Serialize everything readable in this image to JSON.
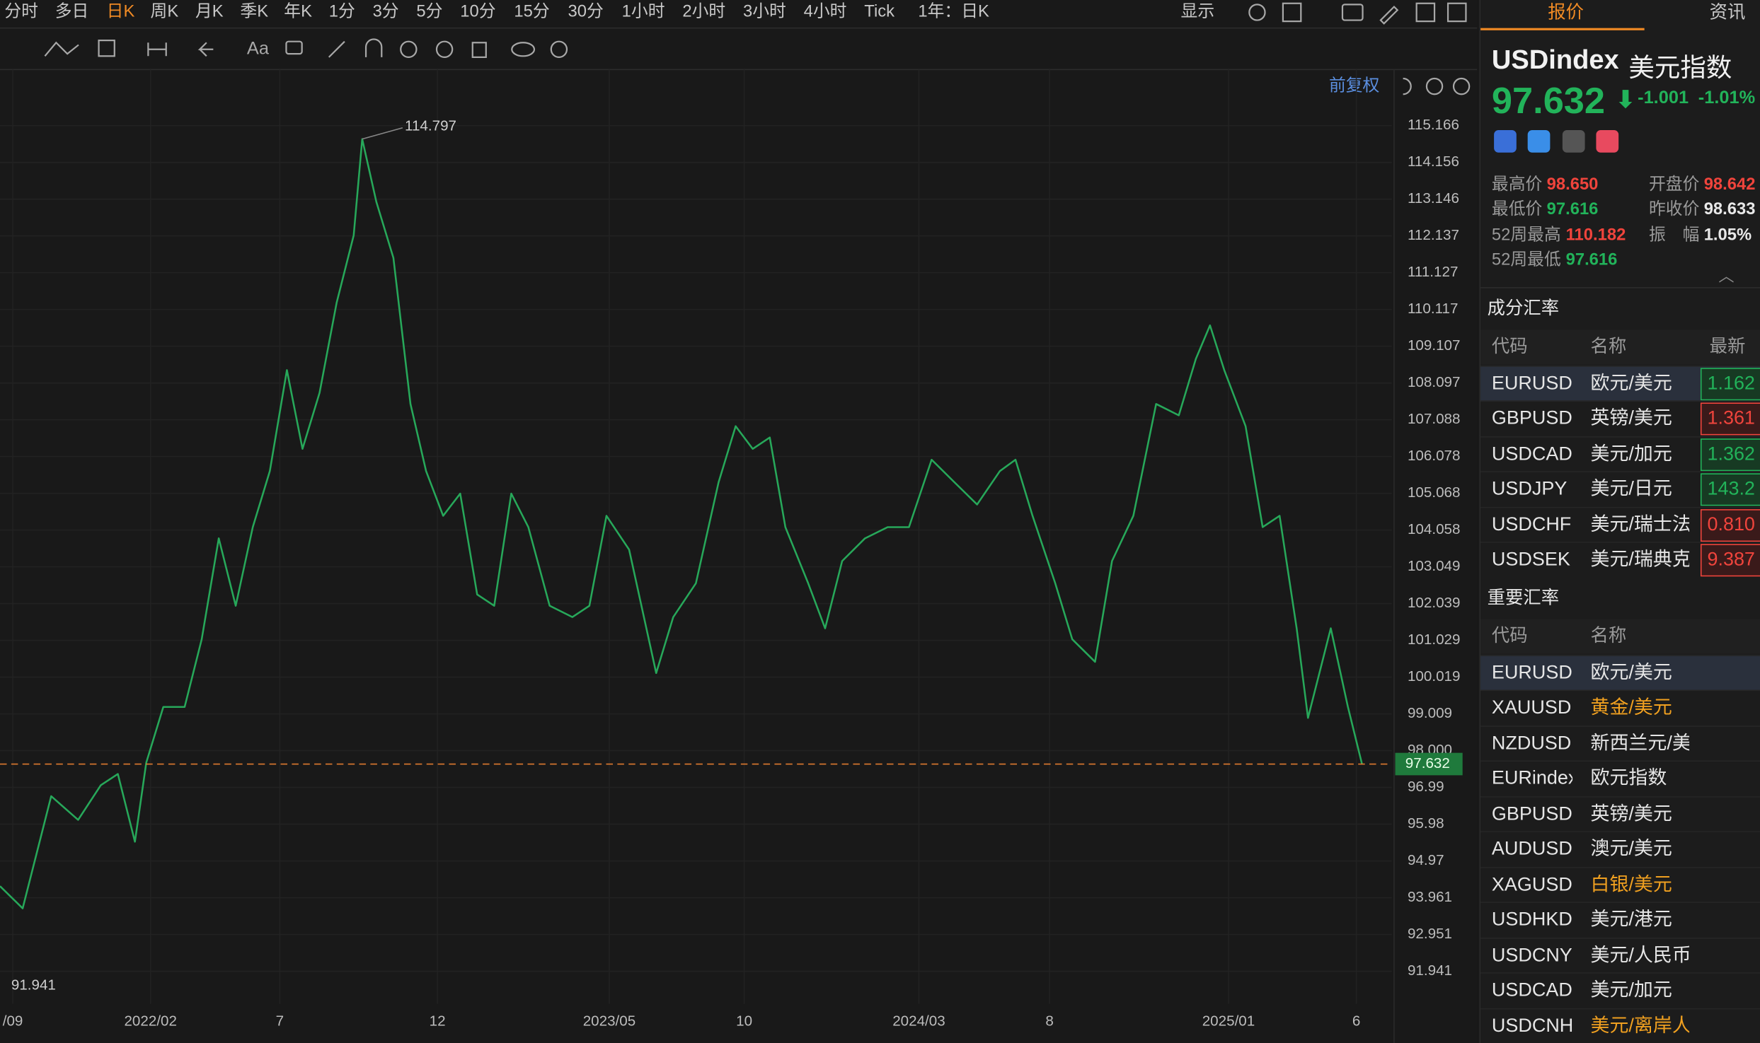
{
  "toolbar": {
    "periods": [
      "分时",
      "多日",
      "日K",
      "周K",
      "月K",
      "季K",
      "年K",
      "1分",
      "3分",
      "5分",
      "10分",
      "15分",
      "30分",
      "1小时",
      "2小时",
      "3小时",
      "4小时",
      "Tick"
    ],
    "active_index": 2,
    "range": "1年：日K",
    "display": "显示",
    "font_tool": "Aa"
  },
  "chart_data": {
    "type": "line",
    "x": [
      0,
      16,
      36,
      55,
      71,
      83,
      95,
      103,
      115,
      130,
      142,
      154,
      166,
      178,
      190,
      202,
      213,
      225,
      237,
      249,
      255,
      265,
      277,
      289,
      300,
      312,
      324,
      336,
      348,
      360,
      372,
      387,
      403,
      415,
      427,
      443,
      462,
      474,
      490,
      506,
      518,
      530,
      542,
      553,
      569,
      581,
      593,
      609,
      625,
      640,
      656,
      672,
      688,
      704,
      715,
      727,
      743,
      755,
      771,
      783,
      798,
      814,
      830,
      842,
      852,
      862,
      877,
      889,
      901,
      913,
      921,
      937,
      949,
      959
    ],
    "values": [
      94.28,
      93.67,
      96.75,
      96.1,
      97.05,
      97.36,
      95.5,
      97.67,
      99.2,
      99.2,
      101.06,
      103.83,
      101.98,
      104.14,
      105.68,
      108.45,
      106.29,
      107.83,
      110.3,
      112.15,
      114.797,
      113.07,
      111.53,
      107.52,
      105.68,
      104.45,
      105.06,
      102.29,
      101.98,
      105.06,
      104.14,
      101.98,
      101.67,
      101.98,
      104.45,
      103.52,
      100.13,
      101.67,
      102.6,
      105.37,
      106.91,
      106.29,
      106.6,
      104.14,
      102.6,
      101.36,
      103.21,
      103.83,
      104.14,
      104.14,
      105.99,
      105.37,
      104.76,
      105.68,
      105.99,
      104.45,
      102.6,
      101.06,
      100.44,
      103.21,
      104.45,
      107.52,
      107.21,
      108.76,
      109.68,
      108.45,
      106.91,
      104.14,
      104.45,
      101.36,
      98.9,
      101.36,
      99.21,
      97.632
    ],
    "color": "#27a85a",
    "xlim": [
      0,
      980
    ],
    "ylim": [
      91.048,
      116.706
    ],
    "yticks": [
      115.166,
      114.156,
      113.146,
      112.137,
      111.127,
      110.117,
      109.107,
      108.097,
      107.088,
      106.078,
      105.068,
      104.058,
      103.049,
      102.039,
      101.029,
      100.019,
      99.009,
      {
        "value": 98,
        "label": "98.000"
      },
      96.99,
      95.98,
      94.97,
      93.961,
      92.951,
      91.941
    ],
    "xticks": [
      {
        "value": 9,
        "label": "/09"
      },
      {
        "value": 106,
        "label": "2022/02"
      },
      {
        "value": 197,
        "label": "7"
      },
      {
        "value": 308,
        "label": "12"
      },
      {
        "value": 429,
        "label": "2023/05"
      },
      {
        "value": 524,
        "label": "10"
      },
      {
        "value": 647,
        "label": "2024/03"
      },
      {
        "value": 739,
        "label": "8"
      },
      {
        "value": 865,
        "label": "2025/01"
      },
      {
        "value": 955,
        "label": "6"
      }
    ],
    "grid": true,
    "adjust": "前复权",
    "last_price": 97.632,
    "last_price_color": "#e07a2f",
    "high_label": 114.797,
    "low_label": 91.941
  },
  "quote": {
    "tab_quote": "报价",
    "tab_news": "资讯",
    "symbol": "USDindex",
    "name": "美元指数",
    "price": "97.632",
    "change": "-1.001",
    "change_pct": "-1.01%",
    "stats": [
      {
        "label": "最高价",
        "value": "98.650",
        "color": "#f0443c"
      },
      {
        "label": "开盘价",
        "value": "98.642",
        "color": "#f0443c"
      },
      {
        "label": "最低价",
        "value": "97.616",
        "color": "#22b35a"
      },
      {
        "label": "昨收价",
        "value": "98.633",
        "color": "#e8e8e8"
      },
      {
        "label": "52周最高",
        "value": "110.182",
        "color": "#f0443c"
      },
      {
        "label": "振　幅",
        "value": "1.05%",
        "color": "#e8e8e8"
      },
      {
        "label": "52周最低",
        "value": "97.616",
        "color": "#22b35a"
      }
    ],
    "components": {
      "title": "成分汇率",
      "headers": [
        "代码",
        "名称",
        "最新"
      ],
      "rows": [
        {
          "code": "EURUSD",
          "name": "欧元/美元",
          "last": "1.162",
          "color": "#22b35a"
        },
        {
          "code": "GBPUSD",
          "name": "英镑/美元",
          "last": "1.361",
          "color": "#f0443c"
        },
        {
          "code": "USDCAD",
          "name": "美元/加元",
          "last": "1.362",
          "color": "#22b35a"
        },
        {
          "code": "USDJPY",
          "name": "美元/日元",
          "last": "143.2",
          "color": "#22b35a"
        },
        {
          "code": "USDCHF",
          "name": "美元/瑞士法郎",
          "last": "0.810",
          "color": "#f0443c"
        },
        {
          "code": "USDSEK",
          "name": "美元/瑞典克朗",
          "last": "9.387",
          "color": "#f0443c"
        }
      ]
    },
    "important": {
      "title": "重要汇率",
      "headers": [
        "代码",
        "名称"
      ],
      "rows": [
        {
          "code": "EURUSD",
          "name": "欧元/美元",
          "color": "#e6e6e6"
        },
        {
          "code": "XAUUSD",
          "name": "黄金/美元",
          "color": "#f0a020"
        },
        {
          "code": "NZDUSD",
          "name": "新西兰元/美元",
          "color": "#e6e6e6"
        },
        {
          "code": "EURindex",
          "name": "欧元指数",
          "color": "#e6e6e6"
        },
        {
          "code": "GBPUSD",
          "name": "英镑/美元",
          "color": "#e6e6e6"
        },
        {
          "code": "AUDUSD",
          "name": "澳元/美元",
          "color": "#e6e6e6"
        },
        {
          "code": "XAGUSD",
          "name": "白银/美元",
          "color": "#f0a020"
        },
        {
          "code": "USDHKD",
          "name": "美元/港元",
          "color": "#e6e6e6"
        },
        {
          "code": "USDCNY",
          "name": "美元/人民币",
          "color": "#e6e6e6"
        },
        {
          "code": "USDCAD",
          "name": "美元/加元",
          "color": "#e6e6e6"
        },
        {
          "code": "USDCNH",
          "name": "美元/离岸人民币",
          "color": "#f0a020"
        }
      ]
    }
  }
}
